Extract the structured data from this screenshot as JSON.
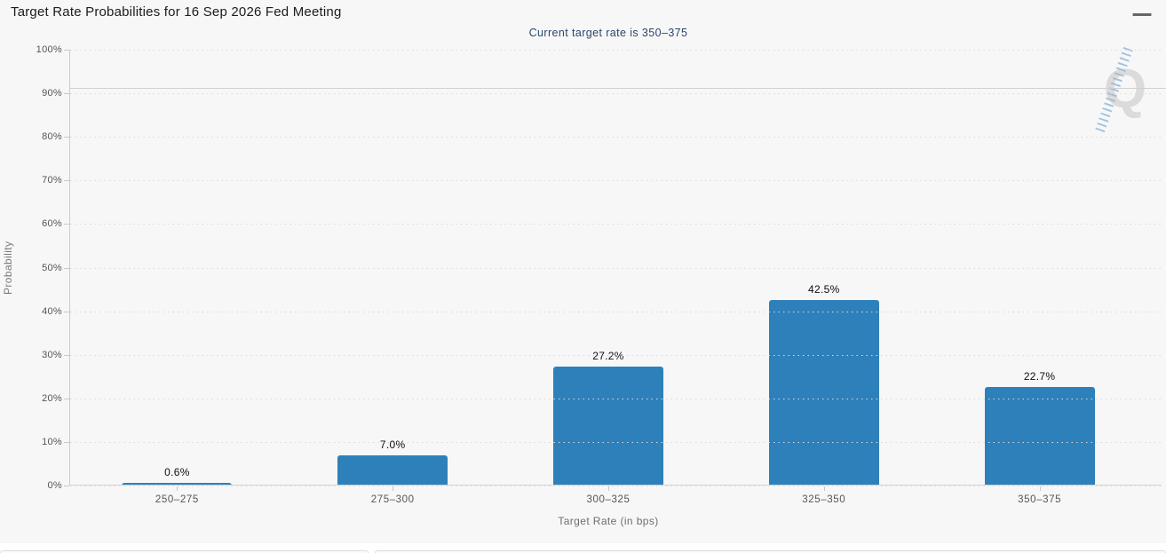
{
  "page": {
    "title": "Target Rate Probabilities for 16 Sep 2026 Fed Meeting",
    "subtitle": "Current target rate is 350–375"
  },
  "chart_data": {
    "type": "bar",
    "title": "Target Rate Probabilities for 16 Sep 2026 Fed Meeting",
    "subtitle": "Current target rate is 350–375",
    "categories": [
      "250–275",
      "275–300",
      "300–325",
      "325–350",
      "350–375"
    ],
    "values": [
      0.6,
      7.0,
      27.2,
      42.5,
      22.7
    ],
    "value_labels": [
      "0.6%",
      "7.0%",
      "27.2%",
      "42.5%",
      "22.7%"
    ],
    "xlabel": "Target Rate (in bps)",
    "ylabel": "Probability",
    "ylim": [
      0,
      100
    ],
    "y_tick_step": 10,
    "y_ticks": [
      "0%",
      "10%",
      "20%",
      "30%",
      "40%",
      "50%",
      "60%",
      "70%",
      "80%",
      "90%",
      "100%"
    ],
    "grid": "horizontal dotted",
    "legend": "none",
    "bar_color": "#2e80ba"
  },
  "colors": {
    "background": "#f7f7f7",
    "bar": "#2e80ba",
    "title_text": "#1c1c1c",
    "subtitle_text": "#29476b",
    "axis_label": "#555555",
    "axis_title": "#6e6e6e",
    "gridline": "#d9d9d9",
    "axis_line": "#cccccc"
  },
  "watermark": {
    "letter": "Q"
  }
}
